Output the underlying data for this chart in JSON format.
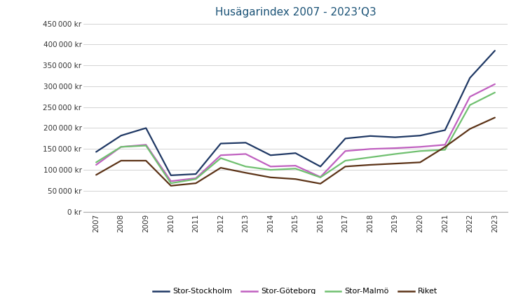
{
  "title": "Husägarindex 2007 - 2023’Q3",
  "title_color": "#1a5276",
  "background_color": "#ffffff",
  "grid_color": "#cccccc",
  "years": [
    2007,
    2008,
    2009,
    2010,
    2011,
    2012,
    2013,
    2014,
    2015,
    2016,
    2017,
    2018,
    2019,
    2020,
    2021,
    2022,
    2023
  ],
  "series": {
    "Stor-Stockholm": {
      "color": "#1f3864",
      "values": [
        143000,
        182000,
        200000,
        87000,
        90000,
        163000,
        165000,
        135000,
        140000,
        108000,
        175000,
        181000,
        178000,
        182000,
        195000,
        320000,
        385000
      ]
    },
    "Stor-Göteborg": {
      "color": "#c060c0",
      "values": [
        112000,
        155000,
        160000,
        73000,
        80000,
        135000,
        138000,
        108000,
        110000,
        83000,
        145000,
        150000,
        152000,
        155000,
        160000,
        275000,
        305000
      ]
    },
    "Stor-Malmö": {
      "color": "#70c070",
      "values": [
        118000,
        155000,
        158000,
        68000,
        78000,
        128000,
        108000,
        100000,
        103000,
        82000,
        122000,
        130000,
        138000,
        145000,
        148000,
        255000,
        285000
      ]
    },
    "Riket": {
      "color": "#5c3317",
      "values": [
        88000,
        122000,
        122000,
        62000,
        68000,
        105000,
        93000,
        82000,
        78000,
        67000,
        108000,
        112000,
        115000,
        118000,
        155000,
        198000,
        225000
      ]
    }
  },
  "ylim": [
    0,
    450000
  ],
  "yticks": [
    0,
    50000,
    100000,
    150000,
    200000,
    250000,
    300000,
    350000,
    400000,
    450000
  ],
  "legend_labels": [
    "Stor-Stockholm",
    "Stor-Göteborg",
    "Stor-Malmö",
    "Riket"
  ]
}
